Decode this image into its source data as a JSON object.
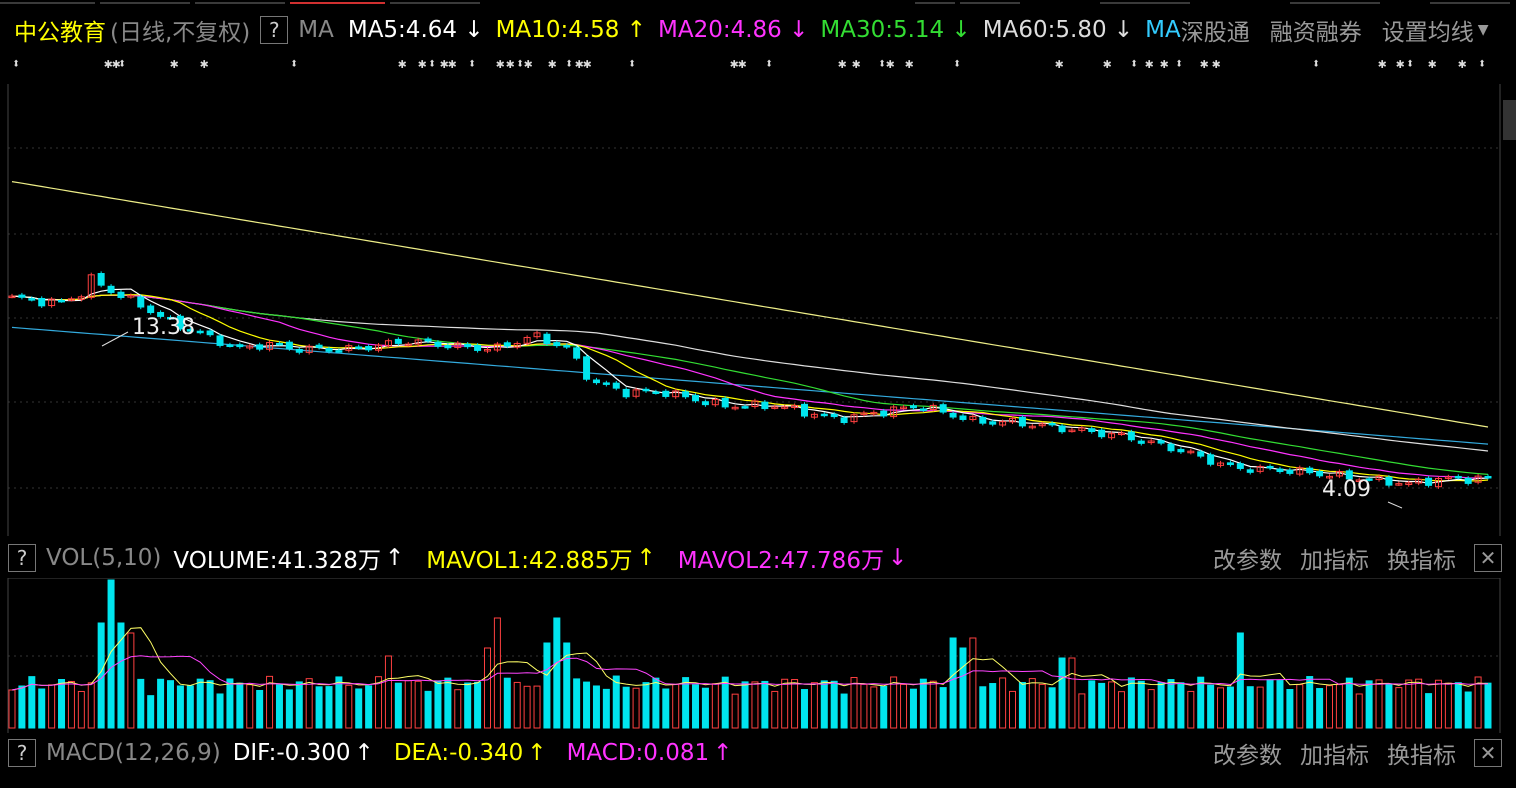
{
  "header": {
    "stock_name": "中公教育",
    "period": "(日线,不复权)",
    "help": "?",
    "indicator": "MA",
    "ma_items": [
      {
        "label": "MA5:4.64",
        "arrow": "↓",
        "color": "#ffffff"
      },
      {
        "label": "MA10:4.58",
        "arrow": "↑",
        "color": "#ffff00"
      },
      {
        "label": "MA20:4.86",
        "arrow": "↓",
        "color": "#ff33ff"
      },
      {
        "label": "MA30:5.14",
        "arrow": "↓",
        "color": "#33dd33"
      },
      {
        "label": "MA60:5.80",
        "arrow": "↓",
        "color": "#dddddd"
      }
    ],
    "ma_cut": "MA",
    "links": [
      "深股通",
      "融资融券",
      "设置均线"
    ],
    "dropdown_icon": "chevron-down-icon"
  },
  "events_marker": "⬍ ✱",
  "price_chart": {
    "high_label": "13.38",
    "low_label": "4.09"
  },
  "vol_panel": {
    "help": "?",
    "title": "VOL(5,10)",
    "volume": "VOLUME:41.328万",
    "volume_arrow": "↑",
    "mavol1": "MAVOL1:42.885万",
    "mavol1_arrow": "↑",
    "mavol2": "MAVOL2:47.786万",
    "mavol2_arrow": "↓",
    "actions": [
      "改参数",
      "加指标",
      "换指标"
    ],
    "close": "✕"
  },
  "macd_panel": {
    "help": "?",
    "title": "MACD(12,26,9)",
    "dif": "DIF:-0.300",
    "dif_arrow": "↑",
    "dea": "DEA:-0.340",
    "dea_arrow": "↑",
    "macd": "MACD:0.081",
    "macd_arrow": "↑",
    "actions": [
      "改参数",
      "加指标",
      "换指标"
    ],
    "close": "✕"
  },
  "colors": {
    "up": "#ff4040",
    "down": "#00e5ee",
    "ma5": "#ffffff",
    "ma10": "#ffff00",
    "ma20": "#ff33ff",
    "ma30": "#33dd33",
    "ma60": "#dddddd",
    "ma_long1": "#eeee88",
    "ma_long2": "#33aadd",
    "vol_ma1": "#ffff66",
    "vol_ma2": "#ff44ff"
  },
  "chart_data": {
    "type": "candlestick",
    "price_high": 13.38,
    "price_low": 4.09,
    "price_last_ma5": 4.64,
    "ma_values_last": {
      "MA5": 4.64,
      "MA10": 4.58,
      "MA20": 4.86,
      "MA30": 5.14,
      "MA60": 5.8
    },
    "volume_last_wan": 41.328,
    "mavol1_wan": 42.885,
    "mavol2_wan": 47.786,
    "dif": -0.3,
    "dea": -0.34,
    "macd": 0.081
  }
}
